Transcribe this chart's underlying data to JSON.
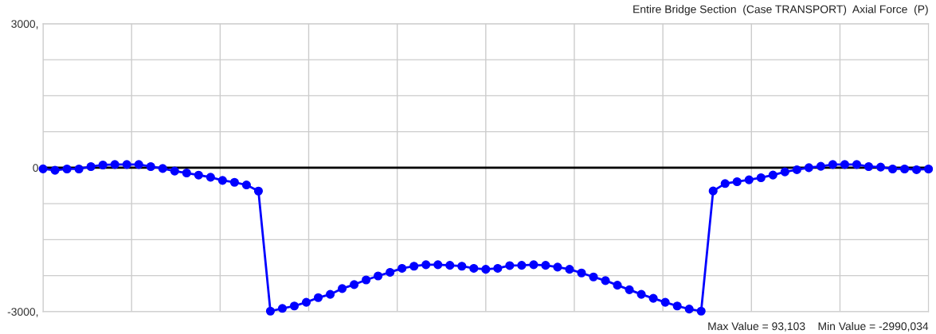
{
  "chart_data": {
    "type": "line",
    "title": "Entire Bridge Section  (Case TRANSPORT)  Axial Force  (P)",
    "categories": [
      null,
      null,
      null,
      null,
      null,
      null,
      null,
      null,
      null,
      null,
      null,
      null,
      null,
      null,
      null,
      null,
      null,
      null,
      null,
      null,
      null,
      null,
      null,
      null,
      null,
      null,
      null,
      null,
      null,
      null,
      null,
      null,
      null,
      null,
      null,
      null,
      null,
      null,
      null,
      null,
      null,
      null,
      null,
      null,
      null,
      null,
      null,
      null,
      null,
      null,
      null,
      null,
      null,
      null,
      null,
      null,
      null,
      null,
      null,
      null,
      null,
      null,
      null,
      null,
      null,
      null,
      null,
      null,
      null,
      null,
      null,
      null,
      null,
      null,
      null
    ],
    "ylim": [
      -3000,
      3000
    ],
    "yticks": [
      {
        "value": -3000,
        "label": "-3000,"
      },
      {
        "value": -2250,
        "label": null
      },
      {
        "value": -1500,
        "label": null
      },
      {
        "value": -750,
        "label": null
      },
      0,
      {
        "value": 750,
        "label": null
      },
      {
        "value": 1500,
        "label": null
      },
      {
        "value": 2250,
        "label": null
      },
      {
        "value": 3000,
        "label": "3000,"
      }
    ],
    "grid": true,
    "marker": "circle",
    "line_style": "solid",
    "ref_lines": [
      {
        "axis": "y",
        "value": 0,
        "color": "#000000"
      }
    ],
    "annotations": [
      "Max Value = 93,103",
      "Min Value = -2990,034"
    ],
    "series": [
      {
        "color": "#0000ff",
        "values": [
          -25,
          -55,
          -27,
          -27,
          23,
          56,
          66,
          66,
          66,
          23,
          -17,
          -71,
          -111,
          -155,
          -199,
          -265,
          -305,
          -360,
          -487,
          -2990,
          -2933,
          -2882,
          -2805,
          -2709,
          -2640,
          -2519,
          -2436,
          -2340,
          -2257,
          -2181,
          -2098,
          -2053,
          -2022,
          -2022,
          -2035,
          -2053,
          -2098,
          -2118,
          -2098,
          -2040,
          -2035,
          -2022,
          -2035,
          -2073,
          -2118,
          -2194,
          -2277,
          -2353,
          -2449,
          -2544,
          -2640,
          -2722,
          -2805,
          -2882,
          -2946,
          -2990,
          -486,
          -331,
          -292,
          -254,
          -209,
          -154,
          -88,
          -43,
          0,
          28,
          66,
          66,
          66,
          23,
          12,
          -27,
          -27,
          -43,
          -27
        ]
      }
    ]
  }
}
